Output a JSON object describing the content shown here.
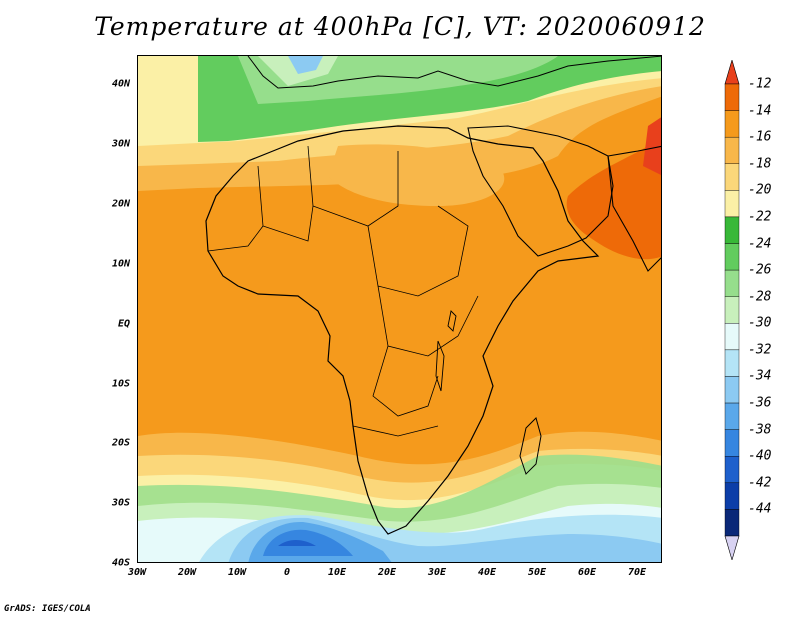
{
  "title": "Temperature at 400hPa [C], VT: 2020060912",
  "footer": "GrADS: IGES/COLA",
  "map": {
    "lat_labels": [
      "40N",
      "30N",
      "20N",
      "10N",
      "EQ",
      "10S",
      "20S",
      "30S",
      "40S"
    ],
    "lon_labels": [
      "30W",
      "20W",
      "10W",
      "0",
      "10E",
      "20E",
      "30E",
      "40E",
      "50E",
      "60E",
      "70E"
    ],
    "lon_range": [
      -30,
      75
    ],
    "lat_range": [
      -40,
      45
    ]
  },
  "colorbar": {
    "levels": [
      "-12",
      "-14",
      "-16",
      "-18",
      "-20",
      "-22",
      "-24",
      "-26",
      "-28",
      "-30",
      "-32",
      "-34",
      "-36",
      "-38",
      "-40",
      "-42",
      "-44"
    ],
    "colors": [
      "#e8401c",
      "#ee6a08",
      "#f59a1c",
      "#f8b74a",
      "#fbd77a",
      "#fbf0a6",
      "#38b838",
      "#62cc5e",
      "#96de8c",
      "#c8f0bc",
      "#e6fafa",
      "#b4e4f6",
      "#8ccaf2",
      "#5aa8ea",
      "#3686e0",
      "#1e60cc",
      "#0c3ea8",
      "#0a2878",
      "#d8d2f2"
    ]
  }
}
